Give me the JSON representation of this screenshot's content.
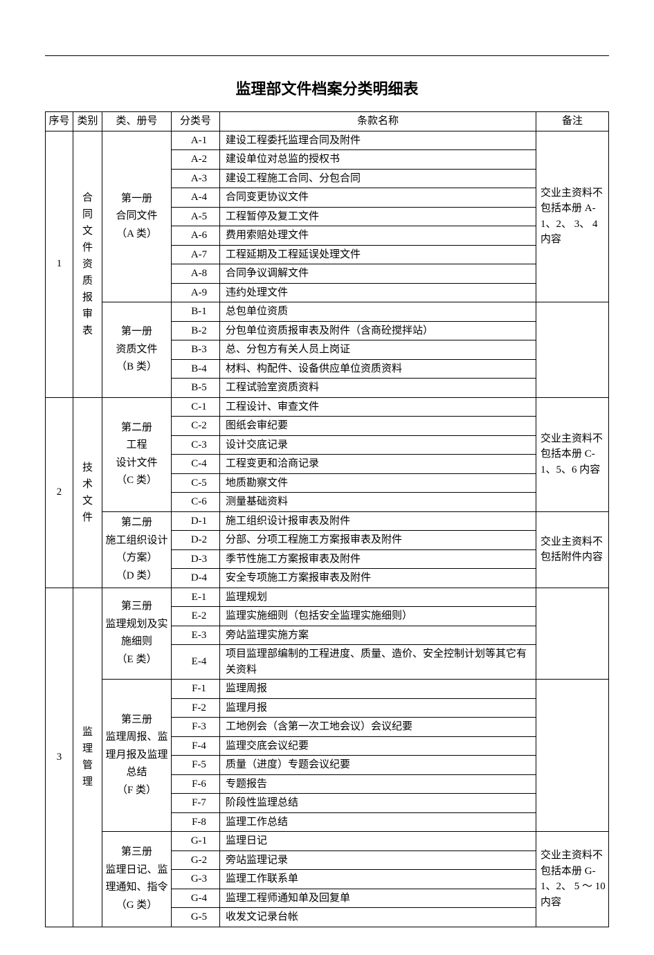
{
  "title": "监理部文件档案分类明细表",
  "headers": {
    "seq": "序号",
    "category": "类别",
    "volume": "类、册号",
    "code": "分类号",
    "name": "条款名称",
    "note": "备注"
  },
  "sections": [
    {
      "seq": "1",
      "category": "合同文件资质报审表",
      "volumes": [
        {
          "title": "第一册\n合同文件\n（A 类）",
          "note": "交业主资料不包括本册 A-1、2、 3、 4内容",
          "rows": [
            {
              "code": "A-1",
              "name": "建设工程委托监理合同及附件"
            },
            {
              "code": "A-2",
              "name": "建设单位对总监的授权书"
            },
            {
              "code": "A-3",
              "name": "建设工程施工合同、分包合同"
            },
            {
              "code": "A-4",
              "name": "合同变更协议文件"
            },
            {
              "code": "A-5",
              "name": "工程暂停及复工文件"
            },
            {
              "code": "A-6",
              "name": "费用索赔处理文件"
            },
            {
              "code": "A-7",
              "name": "工程延期及工程延误处理文件"
            },
            {
              "code": "A-8",
              "name": "合同争议调解文件"
            },
            {
              "code": "A-9",
              "name": "违约处理文件"
            }
          ]
        },
        {
          "title": "第一册\n资质文件\n（B 类）",
          "note": "",
          "rows": [
            {
              "code": "B-1",
              "name": "总包单位资质"
            },
            {
              "code": "B-2",
              "name": "分包单位资质报审表及附件（含商砼搅拌站）"
            },
            {
              "code": "B-3",
              "name": "总、分包方有关人员上岗证"
            },
            {
              "code": "B-4",
              "name": "材料、构配件、设备供应单位资质资料"
            },
            {
              "code": "B-5",
              "name": "工程试验室资质资料"
            }
          ]
        }
      ]
    },
    {
      "seq": "2",
      "category": "技术文件",
      "volumes": [
        {
          "title": "第二册\n工程\n设计文件\n（C 类）",
          "note": "交业主资料不包括本册 C-1、5、6 内容",
          "rows": [
            {
              "code": "C-1",
              "name": "工程设计、审查文件"
            },
            {
              "code": "C-2",
              "name": "图纸会审纪要"
            },
            {
              "code": "C-3",
              "name": "设计交底记录"
            },
            {
              "code": "C-4",
              "name": "工程变更和洽商记录"
            },
            {
              "code": "C-5",
              "name": "地质勘察文件"
            },
            {
              "code": "C-6",
              "name": "测量基础资料"
            }
          ]
        },
        {
          "title": "第二册\n施工组织设计（方案）\n（D 类）",
          "note": "交业主资料不包括附件内容",
          "rows": [
            {
              "code": "D-1",
              "name": "施工组织设计报审表及附件"
            },
            {
              "code": "D-2",
              "name": "分部、分项工程施工方案报审表及附件"
            },
            {
              "code": "D-3",
              "name": "季节性施工方案报审表及附件"
            },
            {
              "code": "D-4",
              "name": "安全专项施工方案报审表及附件"
            }
          ]
        }
      ]
    },
    {
      "seq": "3",
      "category": "监理管理",
      "volumes": [
        {
          "title": "第三册\n监理规划及实施细则\n（E 类）",
          "note": "",
          "rows": [
            {
              "code": "E-1",
              "name": "监理规划"
            },
            {
              "code": "E-2",
              "name": "监理实施细则（包括安全监理实施细则）"
            },
            {
              "code": "E-3",
              "name": "旁站监理实施方案"
            },
            {
              "code": "E-4",
              "name": "项目监理部编制的工程进度、质量、造价、安全控制计划等其它有关资料"
            }
          ]
        },
        {
          "title": "第三册\n监理周报、监理月报及监理总结\n（F 类）",
          "note": "",
          "rows": [
            {
              "code": "F-1",
              "name": "监理周报"
            },
            {
              "code": "F-2",
              "name": "监理月报"
            },
            {
              "code": "F-3",
              "name": "工地例会（含第一次工地会议）会议纪要"
            },
            {
              "code": "F-4",
              "name": "监理交底会议纪要"
            },
            {
              "code": "F-5",
              "name": "质量（进度）专题会议纪要"
            },
            {
              "code": "F-6",
              "name": "专题报告"
            },
            {
              "code": "F-7",
              "name": "阶段性监理总结"
            },
            {
              "code": "F-8",
              "name": "监理工作总结"
            }
          ]
        },
        {
          "title": "第三册\n监理日记、监理通知、指令\n（G 类）",
          "note": "交业主资料不包括本册 G-1、2、 5 ～ 10内容",
          "rows": [
            {
              "code": "G-1",
              "name": "监理日记"
            },
            {
              "code": "G-2",
              "name": "旁站监理记录"
            },
            {
              "code": "G-3",
              "name": "监理工作联系单"
            },
            {
              "code": "G-4",
              "name": "监理工程师通知单及回复单"
            },
            {
              "code": "G-5",
              "name": "收发文记录台帐"
            }
          ]
        }
      ]
    }
  ]
}
